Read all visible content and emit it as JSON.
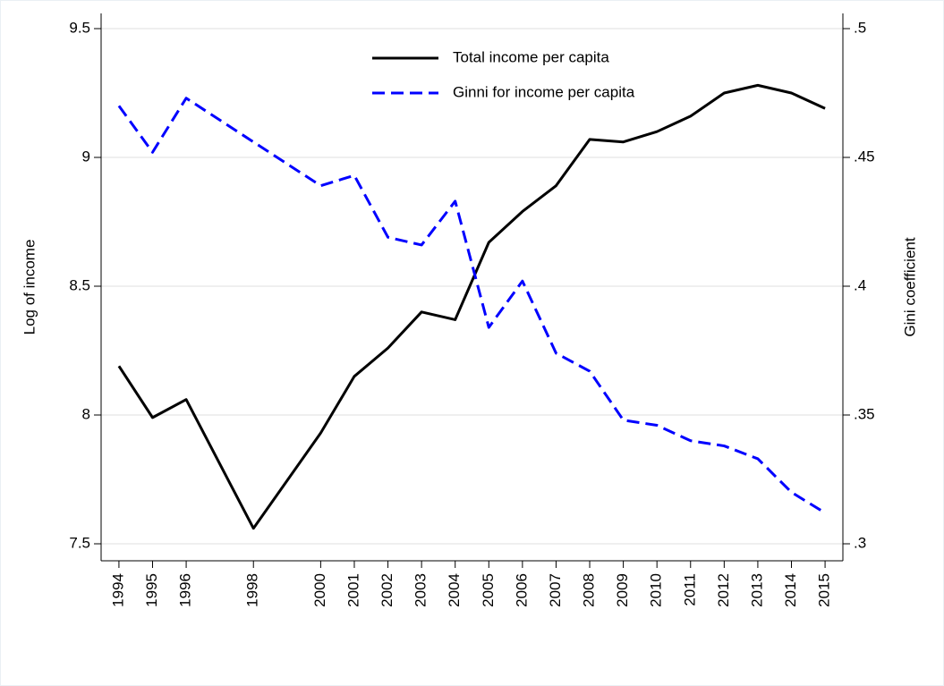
{
  "chart_data": {
    "type": "line",
    "x": [
      1994,
      1995,
      1996,
      1998,
      2000,
      2001,
      2002,
      2003,
      2004,
      2005,
      2006,
      2007,
      2008,
      2009,
      2010,
      2011,
      2012,
      2013,
      2014,
      2015
    ],
    "series": [
      {
        "name": "Total income per capita",
        "color": "#000000",
        "dash": "solid",
        "values": [
          8.19,
          7.99,
          8.06,
          7.56,
          7.93,
          8.15,
          8.26,
          8.4,
          8.37,
          8.67,
          8.79,
          8.89,
          9.07,
          9.06,
          9.1,
          9.16,
          9.25,
          9.28,
          9.25,
          9.19
        ]
      },
      {
        "name": "Ginni for income per capita",
        "color": "#0000ff",
        "dash": "dashed",
        "axis": "y2",
        "values": [
          0.47,
          0.452,
          0.473,
          0.456,
          0.439,
          0.443,
          0.419,
          0.416,
          0.433,
          0.384,
          0.402,
          0.374,
          0.367,
          0.348,
          0.346,
          0.34,
          0.338,
          0.333,
          0.32,
          0.312
        ]
      }
    ],
    "ylabel": "Log of income",
    "y2label": "Gini coefficient",
    "xlim": [
      1993.47,
      2015.53
    ],
    "xticks": [
      1994,
      1995,
      1996,
      1998,
      2000,
      2001,
      2002,
      2003,
      2004,
      2005,
      2006,
      2007,
      2008,
      2009,
      2010,
      2011,
      2012,
      2013,
      2014,
      2015
    ],
    "ylim": [
      7.434,
      9.559
    ],
    "yticks": [
      7.5,
      8,
      8.5,
      9,
      9.5
    ],
    "y2lim": [
      0.2934,
      0.5059
    ],
    "y2ticks": [
      {
        "value": 0.3,
        "label": ".3"
      },
      {
        "value": 0.35,
        "label": ".35"
      },
      {
        "value": 0.4,
        "label": ".4"
      },
      {
        "value": 0.45,
        "label": ".45"
      },
      {
        "value": 0.5,
        "label": ".5"
      }
    ],
    "grid": true,
    "legend": "top"
  }
}
